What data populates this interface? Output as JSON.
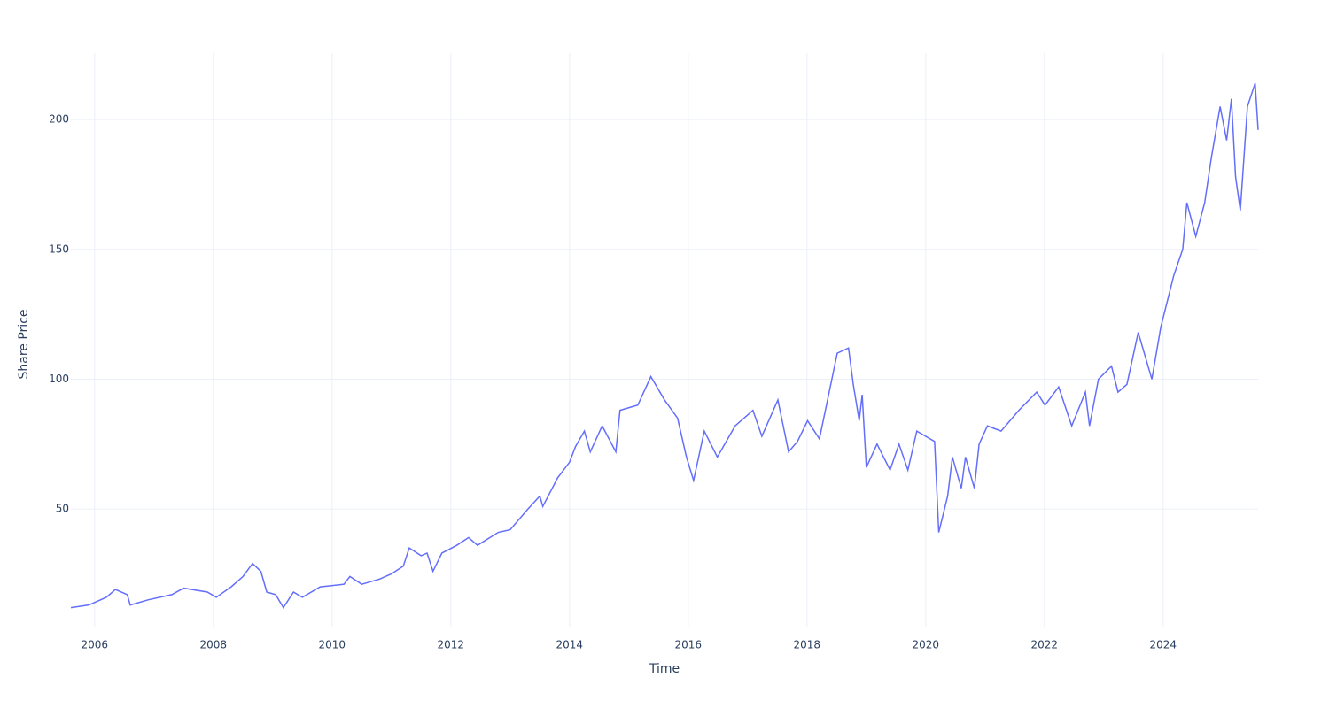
{
  "chart_data": {
    "type": "line",
    "x_label": "Time",
    "y_label": "Share Price",
    "x": [
      2005.6,
      2005.9,
      2006.2,
      2006.35,
      2006.55,
      2006.6,
      2006.9,
      2007.3,
      2007.5,
      2007.9,
      2008.05,
      2008.3,
      2008.5,
      2008.66,
      2008.8,
      2008.9,
      2009.05,
      2009.18,
      2009.35,
      2009.5,
      2009.8,
      2010.2,
      2010.3,
      2010.5,
      2010.8,
      2011.0,
      2011.2,
      2011.3,
      2011.5,
      2011.6,
      2011.7,
      2011.85,
      2012.1,
      2012.3,
      2012.45,
      2012.8,
      2013.0,
      2013.3,
      2013.5,
      2013.55,
      2013.8,
      2014.0,
      2014.1,
      2014.25,
      2014.35,
      2014.55,
      2014.78,
      2014.85,
      2015.15,
      2015.37,
      2015.6,
      2015.82,
      2015.97,
      2016.09,
      2016.27,
      2016.49,
      2016.79,
      2017.09,
      2017.24,
      2017.51,
      2017.69,
      2017.84,
      2018.01,
      2018.21,
      2018.51,
      2018.7,
      2018.78,
      2018.88,
      2018.93,
      2019.0,
      2019.18,
      2019.4,
      2019.55,
      2019.7,
      2019.85,
      2020.15,
      2020.22,
      2020.37,
      2020.45,
      2020.6,
      2020.67,
      2020.82,
      2020.9,
      2021.04,
      2021.27,
      2021.57,
      2021.87,
      2022.01,
      2022.24,
      2022.46,
      2022.69,
      2022.76,
      2022.91,
      2023.13,
      2023.24,
      2023.39,
      2023.58,
      2023.81,
      2023.96,
      2024.18,
      2024.33,
      2024.4,
      2024.55,
      2024.7,
      2024.81,
      2024.96,
      2025.07,
      2025.15,
      2025.22,
      2025.3,
      2025.42,
      2025.55,
      2025.6
    ],
    "series": [
      {
        "name": "Share Price",
        "color": "#636efa",
        "values": [
          12,
          13,
          16,
          19,
          17,
          13,
          15,
          17,
          19.5,
          18,
          16,
          20,
          24,
          29,
          26,
          18,
          17,
          12,
          18,
          16,
          20,
          21,
          24,
          21,
          23,
          25,
          28,
          35,
          32,
          33,
          26,
          33,
          36,
          39,
          36,
          41,
          42,
          50,
          55,
          51,
          62,
          68,
          74,
          80,
          72,
          82,
          72,
          88,
          90,
          101,
          92,
          85,
          70,
          61,
          80,
          70,
          82,
          88,
          78,
          92,
          72,
          76,
          84,
          77,
          110,
          112,
          98,
          84,
          94,
          66,
          75,
          65,
          75,
          65,
          80,
          76,
          41,
          55,
          70,
          58,
          70,
          58,
          75,
          82,
          80,
          88,
          95,
          90,
          97,
          82,
          95,
          82,
          100,
          105,
          95,
          98,
          118,
          100,
          120,
          140,
          150,
          168,
          155,
          168,
          185,
          205,
          192,
          208,
          178,
          165,
          205,
          214,
          196
        ]
      }
    ],
    "xlim": [
      2005.6,
      2025.6
    ],
    "xticks": [
      2006,
      2008,
      2010,
      2012,
      2014,
      2016,
      2018,
      2020,
      2022,
      2024
    ],
    "ylim": [
      4.7,
      225.6
    ],
    "yticks": [
      50,
      100,
      150,
      200
    ],
    "grid": true
  }
}
